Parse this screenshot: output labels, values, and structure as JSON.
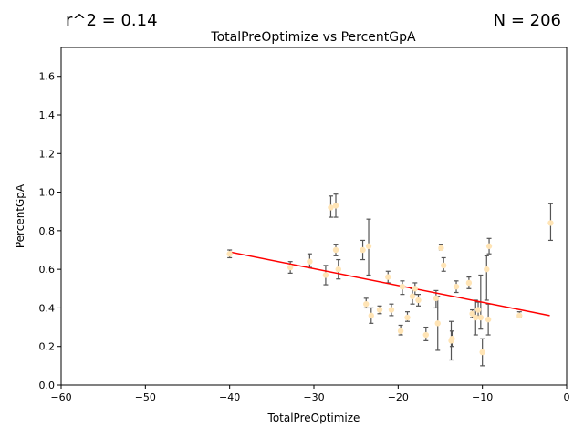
{
  "header": {
    "r_squared": "r^2 = 0.14",
    "n_count": "N = 206"
  },
  "chart_data": {
    "type": "scatter",
    "title": "TotalPreOptimize vs PercentGpA",
    "xlabel": "TotalPreOptimize",
    "ylabel": "PercentGpA",
    "xlim": [
      -60,
      0
    ],
    "ylim": [
      0,
      1.75
    ],
    "xticks": [
      -60,
      -50,
      -40,
      -30,
      -20,
      -10,
      0
    ],
    "xtick_labels": [
      "−60",
      "−50",
      "−40",
      "−30",
      "−20",
      "−10",
      "0"
    ],
    "yticks": [
      0.0,
      0.2,
      0.4,
      0.6,
      0.8,
      1.0,
      1.2,
      1.4,
      1.6
    ],
    "ytick_labels": [
      "0.0",
      "0.2",
      "0.4",
      "0.6",
      "0.8",
      "1.0",
      "1.2",
      "1.4",
      "1.6"
    ],
    "grid": false,
    "point_color": "#ffe4b5",
    "errorbar_color": "#555555",
    "regression_color": "#ff0000",
    "regression_line": {
      "x": [
        -40,
        -2
      ],
      "y": [
        0.69,
        0.36
      ]
    },
    "points": [
      {
        "x": -40,
        "y": 0.68,
        "lo": 0.66,
        "hi": 0.7
      },
      {
        "x": -32.8,
        "y": 0.61,
        "lo": 0.58,
        "hi": 0.64
      },
      {
        "x": -30.5,
        "y": 0.64,
        "lo": 0.61,
        "hi": 0.68
      },
      {
        "x": -28.6,
        "y": 0.57,
        "lo": 0.52,
        "hi": 0.62
      },
      {
        "x": -28,
        "y": 0.92,
        "lo": 0.87,
        "hi": 0.98
      },
      {
        "x": -27.4,
        "y": 0.93,
        "lo": 0.87,
        "hi": 0.99
      },
      {
        "x": -27.4,
        "y": 0.7,
        "lo": 0.67,
        "hi": 0.73
      },
      {
        "x": -27.1,
        "y": 0.6,
        "lo": 0.55,
        "hi": 0.65
      },
      {
        "x": -24.2,
        "y": 0.7,
        "lo": 0.65,
        "hi": 0.75
      },
      {
        "x": -23.8,
        "y": 0.42,
        "lo": 0.4,
        "hi": 0.45
      },
      {
        "x": -23.5,
        "y": 0.72,
        "lo": 0.57,
        "hi": 0.86
      },
      {
        "x": -23.2,
        "y": 0.36,
        "lo": 0.32,
        "hi": 0.4
      },
      {
        "x": -22.2,
        "y": 0.39,
        "lo": 0.37,
        "hi": 0.41
      },
      {
        "x": -21.2,
        "y": 0.56,
        "lo": 0.53,
        "hi": 0.59
      },
      {
        "x": -20.8,
        "y": 0.39,
        "lo": 0.36,
        "hi": 0.42
      },
      {
        "x": -19.7,
        "y": 0.28,
        "lo": 0.26,
        "hi": 0.31
      },
      {
        "x": -19.5,
        "y": 0.51,
        "lo": 0.47,
        "hi": 0.54
      },
      {
        "x": -18.9,
        "y": 0.35,
        "lo": 0.33,
        "hi": 0.38
      },
      {
        "x": -18.3,
        "y": 0.46,
        "lo": 0.42,
        "hi": 0.5
      },
      {
        "x": -18,
        "y": 0.5,
        "lo": 0.47,
        "hi": 0.53
      },
      {
        "x": -17.6,
        "y": 0.44,
        "lo": 0.41,
        "hi": 0.47
      },
      {
        "x": -16.7,
        "y": 0.26,
        "lo": 0.23,
        "hi": 0.3
      },
      {
        "x": -15.5,
        "y": 0.45,
        "lo": 0.4,
        "hi": 0.49
      },
      {
        "x": -15.3,
        "y": 0.32,
        "lo": 0.18,
        "hi": 0.46
      },
      {
        "x": -14.9,
        "y": 0.71,
        "lo": 0.7,
        "hi": 0.73
      },
      {
        "x": -14.6,
        "y": 0.62,
        "lo": 0.59,
        "hi": 0.66
      },
      {
        "x": -13.7,
        "y": 0.23,
        "lo": 0.13,
        "hi": 0.33
      },
      {
        "x": -13.6,
        "y": 0.24,
        "lo": 0.2,
        "hi": 0.28
      },
      {
        "x": -13.1,
        "y": 0.51,
        "lo": 0.48,
        "hi": 0.54
      },
      {
        "x": -11.6,
        "y": 0.53,
        "lo": 0.5,
        "hi": 0.56
      },
      {
        "x": -11.2,
        "y": 0.37,
        "lo": 0.35,
        "hi": 0.39
      },
      {
        "x": -10.8,
        "y": 0.35,
        "lo": 0.26,
        "hi": 0.44
      },
      {
        "x": -10.5,
        "y": 0.39,
        "lo": 0.35,
        "hi": 0.43
      },
      {
        "x": -10.2,
        "y": 0.35,
        "lo": 0.29,
        "hi": 0.57
      },
      {
        "x": -10,
        "y": 0.17,
        "lo": 0.1,
        "hi": 0.24
      },
      {
        "x": -9.5,
        "y": 0.6,
        "lo": 0.44,
        "hi": 0.67
      },
      {
        "x": -9.2,
        "y": 0.72,
        "lo": 0.68,
        "hi": 0.76
      },
      {
        "x": -9.3,
        "y": 0.34,
        "lo": 0.26,
        "hi": 0.42
      },
      {
        "x": -5.6,
        "y": 0.36,
        "lo": 0.35,
        "hi": 0.38
      },
      {
        "x": -1.9,
        "y": 0.84,
        "lo": 0.75,
        "hi": 0.94
      }
    ]
  }
}
